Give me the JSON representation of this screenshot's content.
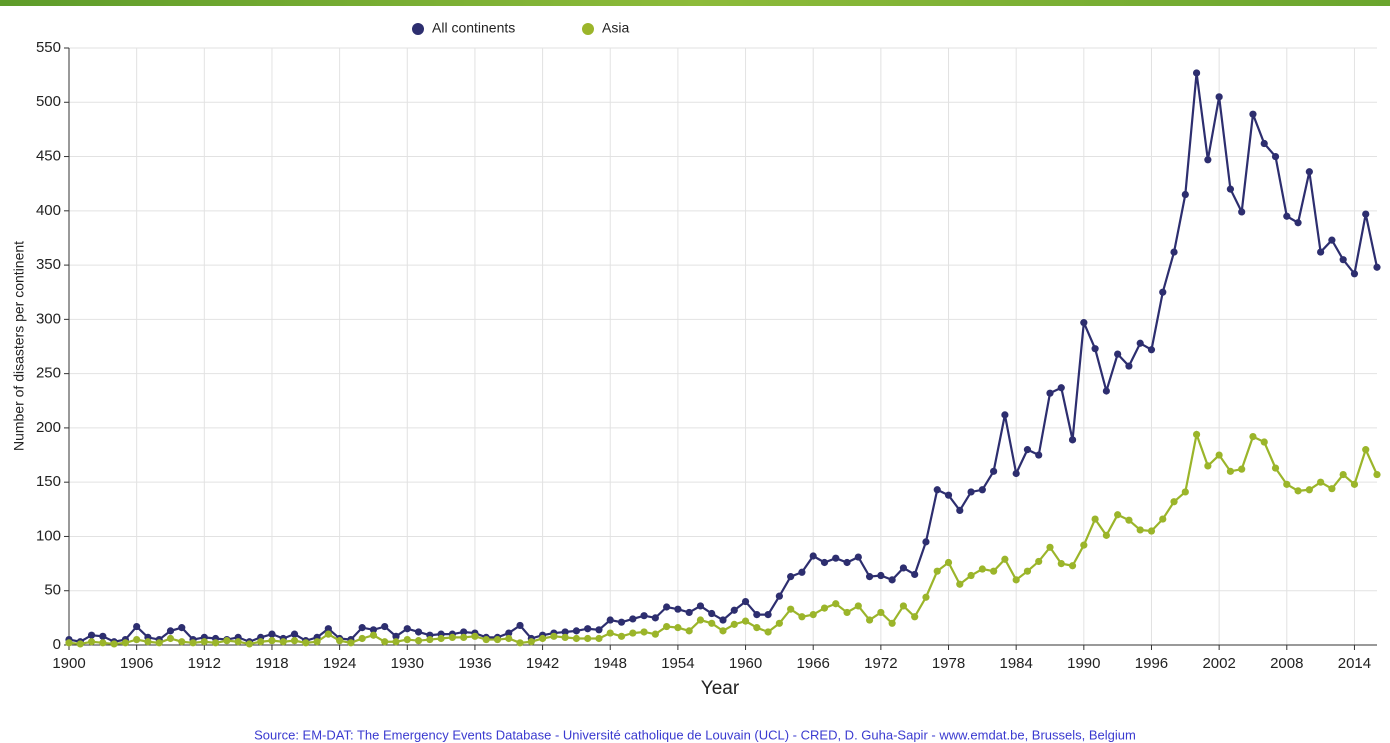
{
  "chart_data": {
    "type": "line",
    "legend": "top",
    "grid": true,
    "y_label": "Number of disasters per continent",
    "x_label": "Year",
    "source": "Source: EM-DAT: The Emergency Events Database - Université catholique de Louvain (UCL) - CRED, D. Guha-Sapir - www.emdat.be, Brussels, Belgium",
    "x": [
      1900,
      1901,
      1902,
      1903,
      1904,
      1905,
      1906,
      1907,
      1908,
      1909,
      1910,
      1911,
      1912,
      1913,
      1914,
      1915,
      1916,
      1917,
      1918,
      1919,
      1920,
      1921,
      1922,
      1923,
      1924,
      1925,
      1926,
      1927,
      1928,
      1929,
      1930,
      1931,
      1932,
      1933,
      1934,
      1935,
      1936,
      1937,
      1938,
      1939,
      1940,
      1941,
      1942,
      1943,
      1944,
      1945,
      1946,
      1947,
      1948,
      1949,
      1950,
      1951,
      1952,
      1953,
      1954,
      1955,
      1956,
      1957,
      1958,
      1959,
      1960,
      1961,
      1962,
      1963,
      1964,
      1965,
      1966,
      1967,
      1968,
      1969,
      1970,
      1971,
      1972,
      1973,
      1974,
      1975,
      1976,
      1977,
      1978,
      1979,
      1980,
      1981,
      1982,
      1983,
      1984,
      1985,
      1986,
      1987,
      1988,
      1989,
      1990,
      1991,
      1992,
      1993,
      1994,
      1995,
      1996,
      1997,
      1998,
      1999,
      2000,
      2001,
      2002,
      2003,
      2004,
      2005,
      2006,
      2007,
      2008,
      2009,
      2010,
      2011,
      2012,
      2013,
      2014,
      2015,
      2016
    ],
    "series": [
      {
        "name": "All continents",
        "color": "#2d2e6f",
        "values": [
          5,
          3,
          9,
          8,
          3,
          5,
          17,
          7,
          5,
          13,
          16,
          5,
          7,
          6,
          5,
          7,
          3,
          7,
          10,
          6,
          10,
          4,
          7,
          15,
          6,
          5,
          16,
          14,
          17,
          8,
          15,
          12,
          9,
          10,
          10,
          12,
          11,
          7,
          7,
          11,
          18,
          6,
          9,
          11,
          12,
          13,
          15,
          14,
          23,
          21,
          24,
          27,
          25,
          35,
          33,
          30,
          36,
          29,
          23,
          32,
          40,
          28,
          28,
          45,
          63,
          67,
          82,
          76,
          80,
          76,
          81,
          63,
          64,
          60,
          71,
          65,
          95,
          143,
          138,
          124,
          141,
          143,
          160,
          212,
          158,
          180,
          175,
          232,
          237,
          189,
          297,
          273,
          234,
          268,
          257,
          278,
          272,
          325,
          362,
          415,
          527,
          447,
          505,
          420,
          399,
          489,
          462,
          450,
          395,
          389,
          436,
          362,
          373,
          355,
          342,
          397,
          348
        ]
      },
      {
        "name": "Asia",
        "color": "#9bb52a",
        "values": [
          2,
          1,
          3,
          2,
          1,
          2,
          5,
          3,
          2,
          6,
          3,
          2,
          3,
          2,
          4,
          3,
          1,
          3,
          4,
          3,
          4,
          2,
          3,
          10,
          4,
          2,
          6,
          9,
          3,
          3,
          5,
          4,
          5,
          6,
          7,
          7,
          8,
          5,
          5,
          6,
          2,
          3,
          6,
          8,
          7,
          6,
          6,
          6,
          11,
          8,
          11,
          12,
          10,
          17,
          16,
          13,
          23,
          20,
          13,
          19,
          22,
          16,
          12,
          20,
          33,
          26,
          28,
          34,
          38,
          30,
          36,
          23,
          30,
          20,
          36,
          26,
          44,
          68,
          76,
          56,
          64,
          70,
          68,
          79,
          60,
          68,
          77,
          90,
          75,
          73,
          92,
          116,
          101,
          120,
          115,
          106,
          105,
          116,
          132,
          141,
          194,
          165,
          175,
          160,
          162,
          192,
          187,
          163,
          148,
          142,
          143,
          150,
          144,
          157,
          148,
          180,
          157
        ]
      }
    ],
    "xlim": [
      1900,
      2016
    ],
    "xticks": [
      1900,
      1906,
      1912,
      1918,
      1924,
      1930,
      1936,
      1942,
      1948,
      1954,
      1960,
      1966,
      1972,
      1978,
      1984,
      1990,
      1996,
      2002,
      2008,
      2014
    ],
    "ylim": [
      0,
      550
    ],
    "yticks": [
      0,
      50,
      100,
      150,
      200,
      250,
      300,
      350,
      400,
      450,
      500,
      550
    ]
  }
}
